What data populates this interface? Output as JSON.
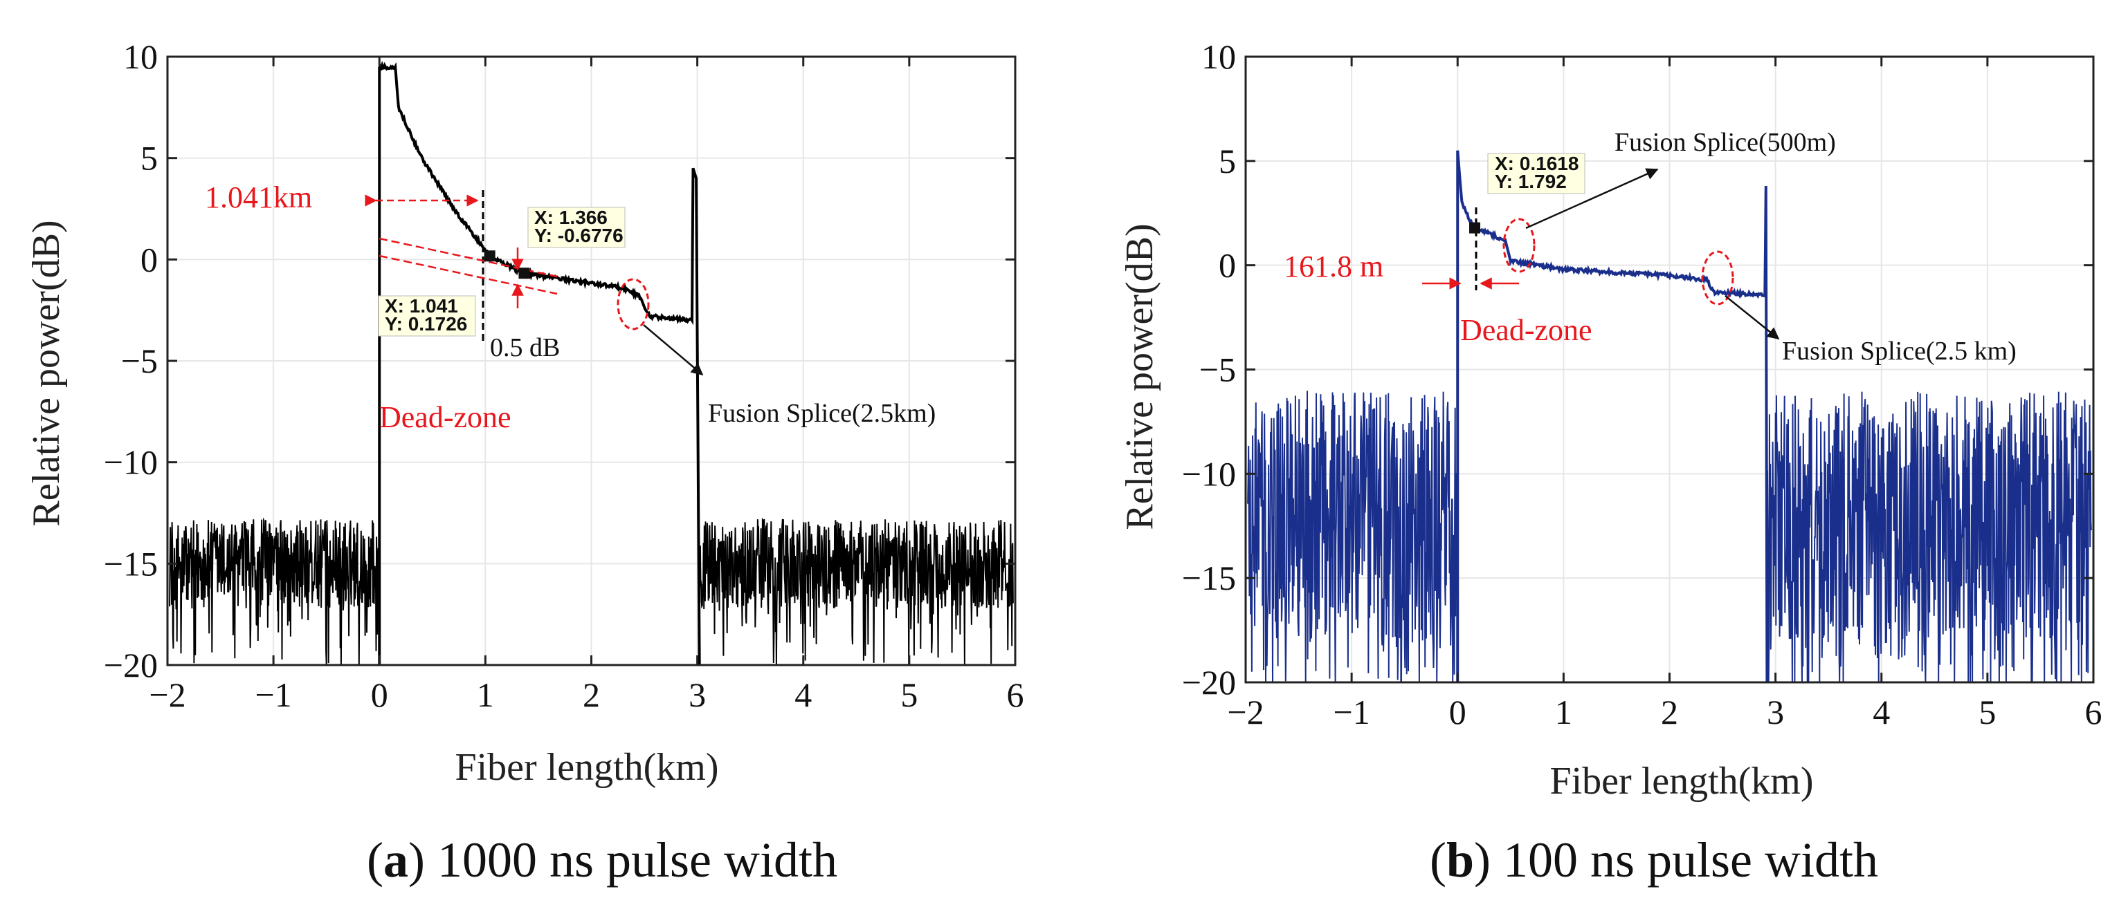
{
  "chart_data": [
    {
      "type": "line",
      "id": "a",
      "caption_letter": "a",
      "caption_rest": ") 1000 ns pulse width",
      "caption_open": "(",
      "xlabel": "Fiber length(km)",
      "ylabel": "Relative power(dB)",
      "xlim": [
        -2,
        6
      ],
      "ylim": [
        -20,
        10
      ],
      "xticks": [
        -2,
        -1,
        0,
        1,
        2,
        3,
        4,
        5,
        6
      ],
      "yticks": [
        -20,
        -15,
        -10,
        -5,
        0,
        5,
        10
      ],
      "xtick_labels": [
        "−2",
        "−1",
        "0",
        "1",
        "2",
        "3",
        "4",
        "5",
        "6"
      ],
      "ytick_labels": [
        "−20",
        "−15",
        "−10",
        "−5",
        "0",
        "5",
        "10"
      ],
      "grid": true,
      "series_color": "#000000",
      "noise_mean": -15,
      "noise_amp": 2.2,
      "trace": [
        [
          0.0,
          9.5
        ],
        [
          0.15,
          9.5
        ],
        [
          0.18,
          7.5
        ],
        [
          0.4,
          5.0
        ],
        [
          0.7,
          2.5
        ],
        [
          1.041,
          0.1726
        ],
        [
          1.366,
          -0.6776
        ],
        [
          2.3,
          -1.4
        ],
        [
          2.45,
          -1.8
        ],
        [
          2.55,
          -2.8
        ],
        [
          2.95,
          -3.0
        ],
        [
          2.96,
          4.5
        ],
        [
          2.99,
          4.0
        ],
        [
          3.02,
          -20.0
        ]
      ],
      "dead_zone_end": 0.0,
      "annotations": {
        "distance_label": "1.041km",
        "dead_zone": "Dead-zone",
        "delta_label": "0.5 dB",
        "splice_label": "Fusion Splice(2.5km)",
        "tip1": {
          "x_text": "X: 1.041",
          "y_text": "Y: 0.1726",
          "x": 1.041,
          "y": 0.1726
        },
        "tip2": {
          "x_text": "X: 1.366",
          "y_text": "Y: -0.6776",
          "x": 1.366,
          "y": -0.6776
        },
        "splice_marker": {
          "x": 2.5,
          "y": -2.0
        }
      }
    },
    {
      "type": "line",
      "id": "b",
      "caption_letter": "b",
      "caption_rest": ") 100 ns pulse width",
      "caption_open": "(",
      "xlabel": "Fiber length(km)",
      "ylabel": "Relative power(dB)",
      "xlim": [
        -2,
        6
      ],
      "ylim": [
        -20,
        10
      ],
      "xticks": [
        -2,
        -1,
        0,
        1,
        2,
        3,
        4,
        5,
        6
      ],
      "yticks": [
        -20,
        -15,
        -10,
        -5,
        0,
        5,
        10
      ],
      "xtick_labels": [
        "−2",
        "−1",
        "0",
        "1",
        "2",
        "3",
        "4",
        "5",
        "6"
      ],
      "ytick_labels": [
        "−20",
        "−15",
        "−10",
        "−5",
        "0",
        "5",
        "10"
      ],
      "grid": true,
      "series_color": "#1a2f8c",
      "noise_mean": -12,
      "noise_amp": 6,
      "trace": [
        [
          0.0,
          5.5
        ],
        [
          0.04,
          3.0
        ],
        [
          0.1,
          2.3
        ],
        [
          0.1618,
          1.792
        ],
        [
          0.45,
          1.2
        ],
        [
          0.5,
          0.2
        ],
        [
          1.0,
          -0.2
        ],
        [
          2.0,
          -0.5
        ],
        [
          2.35,
          -0.7
        ],
        [
          2.42,
          -1.3
        ],
        [
          2.9,
          -1.4
        ],
        [
          2.91,
          3.8
        ],
        [
          2.92,
          -20.0
        ]
      ],
      "annotations": {
        "distance_label": "161.8 m",
        "dead_zone": "Dead-zone",
        "splice_label_1": "Fusion Splice(500m)",
        "splice_label_2": "Fusion Splice(2.5 km)",
        "tip1": {
          "x_text": "X: 0.1618",
          "y_text": "Y: 1.792",
          "x": 0.1618,
          "y": 1.792
        },
        "splice_marker_1": {
          "x": 0.5,
          "y": 0.8
        },
        "splice_marker_2": {
          "x": 2.4,
          "y": -0.8
        }
      }
    }
  ]
}
